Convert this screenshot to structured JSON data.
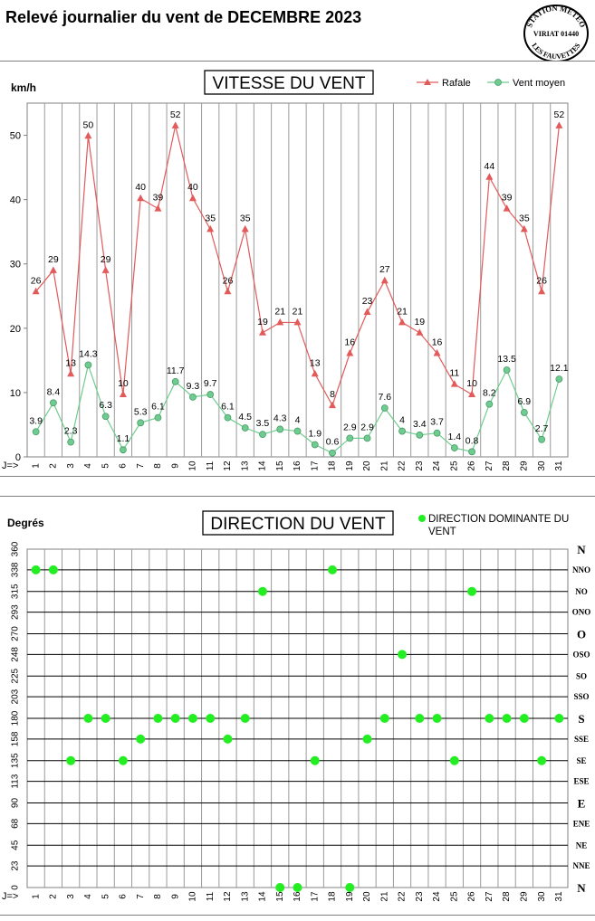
{
  "header": {
    "title": "Relevé journalier du vent de DECEMBRE 2023",
    "stamp_lines": [
      "STATION METEO",
      "VIRIAT 01440",
      "LES FAUVETTES"
    ]
  },
  "colors": {
    "rafale": "#e25a5a",
    "moyen": "#6fcc8f",
    "direction": "#22ee22",
    "grid": "#7f7f7f"
  },
  "chart_data": [
    {
      "type": "line",
      "title": "VITESSE DU VENT",
      "ylabel": "km/h",
      "xlabel": "J=>",
      "ylim": [
        0,
        55
      ],
      "yticks": [
        0,
        10,
        20,
        30,
        40,
        50
      ],
      "categories": [
        "1",
        "2",
        "3",
        "4",
        "5",
        "6",
        "7",
        "8",
        "9",
        "10",
        "11",
        "12",
        "13",
        "14",
        "15",
        "16",
        "17",
        "18",
        "19",
        "20",
        "21",
        "22",
        "23",
        "24",
        "25",
        "26",
        "27",
        "28",
        "29",
        "30",
        "31"
      ],
      "legend": "top-right",
      "series": [
        {
          "name": "Rafale",
          "values": [
            25.7,
            29,
            12.9,
            49.9,
            29,
            9.7,
            40.2,
            38.6,
            51.5,
            40.2,
            35.4,
            25.7,
            35.4,
            19.3,
            20.9,
            20.9,
            12.9,
            8,
            16.1,
            22.5,
            27.4,
            20.9,
            19.3,
            16.1,
            11.3,
            9.7,
            43.5,
            38.6,
            35.4,
            25.7,
            51.5
          ],
          "labels": [
            "26",
            "29",
            "13",
            "50",
            "29",
            "10",
            "40",
            "39",
            "52",
            "40",
            "35",
            "26",
            "35",
            "19",
            "21",
            "21",
            "13",
            "8",
            "16",
            "23",
            "27",
            "21",
            "19",
            "16",
            "11",
            "10",
            "44",
            "39",
            "35",
            "26",
            "52"
          ]
        },
        {
          "name": "Vent moyen",
          "values": [
            3.9,
            8.4,
            2.3,
            14.3,
            6.3,
            1.1,
            5.3,
            6.1,
            11.7,
            9.3,
            9.7,
            6.1,
            4.5,
            3.5,
            4.3,
            4,
            1.9,
            0.6,
            2.9,
            2.9,
            7.6,
            4,
            3.4,
            3.7,
            1.4,
            0.8,
            8.2,
            13.5,
            6.9,
            2.7,
            12.1
          ],
          "labels": [
            "3.9",
            "8.4",
            "2.3",
            "14.3",
            "6.3",
            "1.1",
            "5.3",
            "6.1",
            "11.7",
            "9.3",
            "9.7",
            "6.1",
            "4.5",
            "3.5",
            "4.3",
            "4",
            "1.9",
            "0.6",
            "2.9",
            "2.9",
            "7.6",
            "4",
            "3.4",
            "3.7",
            "1.4",
            "0.8",
            "8.2",
            "13.5",
            "6.9",
            "2.7",
            "12.1"
          ]
        }
      ]
    },
    {
      "type": "scatter",
      "title": "DIRECTION DU VENT",
      "ylabel": "Degrés",
      "xlabel": "J=>",
      "ylim": [
        0,
        360
      ],
      "yticks": [
        0,
        23,
        45,
        68,
        90,
        113,
        135,
        158,
        180,
        203,
        225,
        248,
        270,
        293,
        315,
        338,
        360
      ],
      "compass": [
        "N",
        "NNE",
        "NE",
        "ENE",
        "E",
        "ESE",
        "SE",
        "SSE",
        "S",
        "SSO",
        "SO",
        "OSO",
        "O",
        "ONO",
        "NO",
        "NNO",
        "N"
      ],
      "compass_major": [
        "N",
        "E",
        "S",
        "O"
      ],
      "categories": [
        "1",
        "2",
        "3",
        "4",
        "5",
        "6",
        "7",
        "8",
        "9",
        "10",
        "11",
        "12",
        "13",
        "14",
        "15",
        "16",
        "17",
        "18",
        "19",
        "20",
        "21",
        "22",
        "23",
        "24",
        "25",
        "26",
        "27",
        "28",
        "29",
        "30",
        "31"
      ],
      "legend": "top-right",
      "series": [
        {
          "name": "DIRECTION DOMINANTE DU VENT",
          "values": [
            338,
            338,
            135,
            180,
            180,
            135,
            158,
            180,
            180,
            180,
            180,
            158,
            180,
            315,
            0,
            0,
            135,
            338,
            0,
            158,
            180,
            248,
            180,
            180,
            135,
            315,
            180,
            180,
            180,
            135,
            180
          ]
        }
      ]
    }
  ]
}
